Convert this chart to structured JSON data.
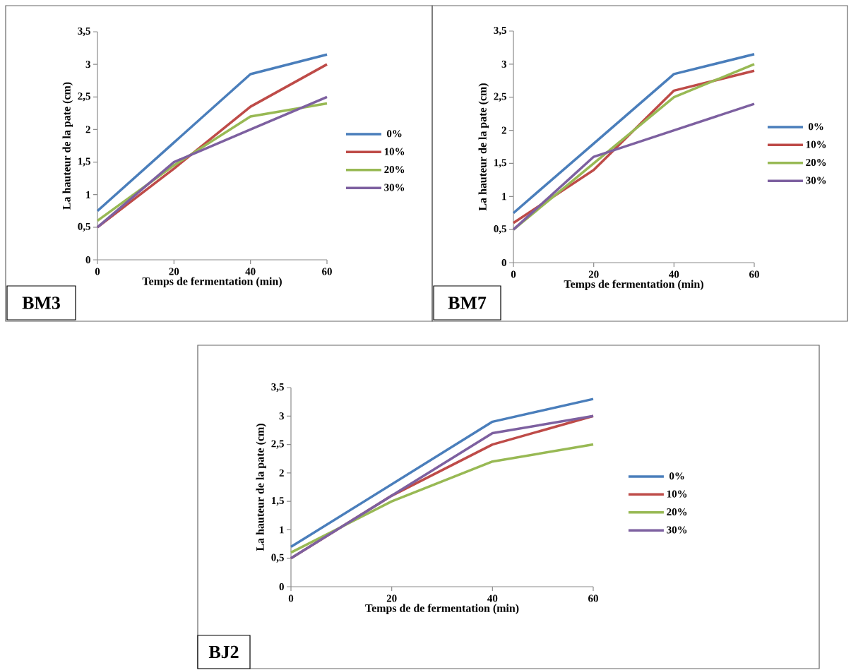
{
  "chart_data": [
    {
      "type": "line",
      "title": "BM3",
      "xlabel": "Temps de fermentation (min)",
      "ylabel": "La hauteur de la pate (cm)",
      "x": [
        0,
        20,
        40,
        60
      ],
      "xlim": [
        0,
        60
      ],
      "xticks": [
        0,
        20,
        40,
        60
      ],
      "ylim": [
        0,
        3.5
      ],
      "yticks": [
        0,
        {
          "value": 0.5,
          "label": "0,5"
        },
        1,
        {
          "value": 1.5,
          "label": "1,5"
        },
        2,
        {
          "value": 2.5,
          "label": "2,5"
        },
        3,
        {
          "value": 3.5,
          "label": "3,5"
        }
      ],
      "legend": "right",
      "grid": false,
      "series": [
        {
          "name": "0%",
          "color": "#4a7ebb",
          "values": [
            0.75,
            1.8,
            2.85,
            3.15
          ]
        },
        {
          "name": "10%",
          "color": "#be4b48",
          "values": [
            0.5,
            1.4,
            2.35,
            3.0
          ]
        },
        {
          "name": "20%",
          "color": "#98b954",
          "values": [
            0.6,
            1.45,
            2.2,
            2.4
          ]
        },
        {
          "name": "30%",
          "color": "#7d60a0",
          "values": [
            0.5,
            1.5,
            2.0,
            2.5
          ]
        }
      ]
    },
    {
      "type": "line",
      "title": "BM7",
      "xlabel": "Temps de fermentation (min)",
      "ylabel": "La hauteur de la pate (cm)",
      "x": [
        0,
        20,
        40,
        60
      ],
      "xlim": [
        0,
        60
      ],
      "xticks": [
        0,
        20,
        40,
        60
      ],
      "ylim": [
        0,
        3.5
      ],
      "yticks": [
        0,
        {
          "value": 0.5,
          "label": "0,5"
        },
        1,
        {
          "value": 1.5,
          "label": "1,5"
        },
        2,
        {
          "value": 2.5,
          "label": "2,5"
        },
        3,
        {
          "value": 3.5,
          "label": "3,5"
        }
      ],
      "legend": "right",
      "grid": false,
      "series": [
        {
          "name": "0%",
          "color": "#4a7ebb",
          "values": [
            0.75,
            1.8,
            2.85,
            3.15
          ]
        },
        {
          "name": "10%",
          "color": "#be4b48",
          "values": [
            0.6,
            1.4,
            2.6,
            2.9
          ]
        },
        {
          "name": "20%",
          "color": "#98b954",
          "values": [
            0.5,
            1.5,
            2.5,
            3.0
          ]
        },
        {
          "name": "30%",
          "color": "#7d60a0",
          "values": [
            0.5,
            1.6,
            2.0,
            2.4
          ]
        }
      ]
    },
    {
      "type": "line",
      "title": "BJ2",
      "xlabel": "Temps de de fermentation (min)",
      "ylabel": "La hauteur de la pate (cm)",
      "x": [
        0,
        20,
        40,
        60
      ],
      "xlim": [
        0,
        60
      ],
      "xticks": [
        0,
        20,
        40,
        60
      ],
      "ylim": [
        0,
        3.5
      ],
      "yticks": [
        0,
        {
          "value": 0.5,
          "label": "0,5"
        },
        1,
        {
          "value": 1.5,
          "label": "1,5"
        },
        2,
        {
          "value": 2.5,
          "label": "2,5"
        },
        3,
        {
          "value": 3.5,
          "label": "3,5"
        }
      ],
      "legend": "right",
      "grid": false,
      "series": [
        {
          "name": "0%",
          "color": "#4a7ebb",
          "values": [
            0.7,
            1.8,
            2.9,
            3.3
          ]
        },
        {
          "name": "10%",
          "color": "#be4b48",
          "values": [
            0.5,
            1.6,
            2.5,
            3.0
          ]
        },
        {
          "name": "20%",
          "color": "#98b954",
          "values": [
            0.6,
            1.5,
            2.2,
            2.5
          ]
        },
        {
          "name": "30%",
          "color": "#7d60a0",
          "values": [
            0.5,
            1.6,
            2.7,
            3.0
          ]
        }
      ]
    }
  ]
}
